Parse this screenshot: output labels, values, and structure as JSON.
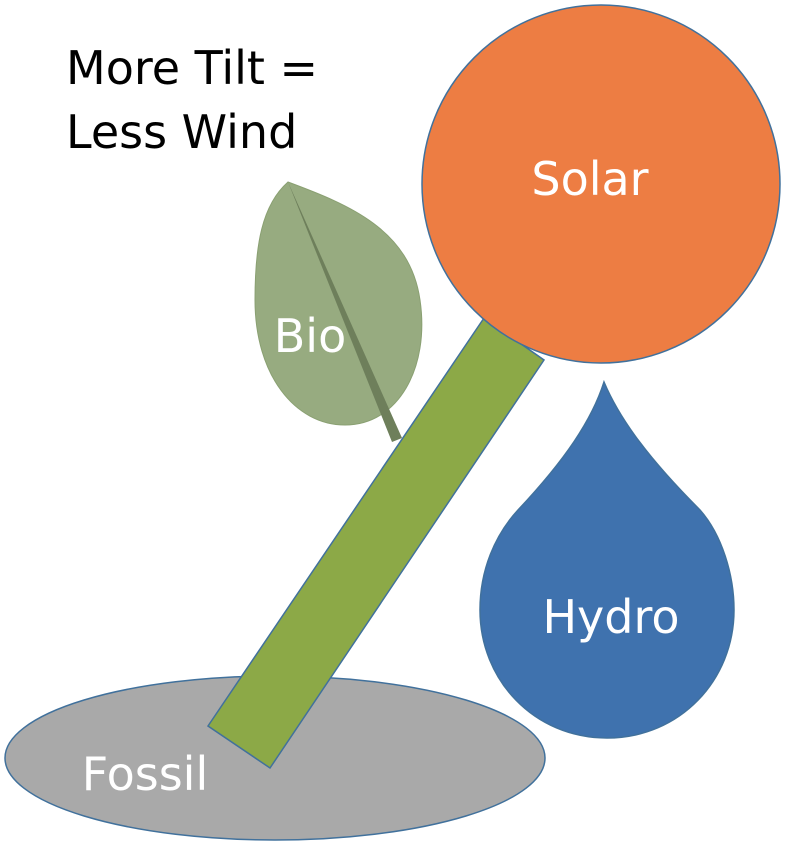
{
  "caption": {
    "line1": "More Tilt =",
    "line2": "Less Wind"
  },
  "shapes": {
    "solar": {
      "label": "Solar",
      "color": "#ED7D43"
    },
    "bio": {
      "label": "Bio",
      "color": "#97AB80",
      "vein_color": "#6E7F5B"
    },
    "hydro": {
      "label": "Hydro",
      "color": "#3F72AE"
    },
    "fossil": {
      "label": "Fossil",
      "color": "#A9A9A9"
    },
    "stem": {
      "color": "#8CA947"
    },
    "outline_color": "#41719C",
    "label_color": "#FFFFFF"
  }
}
